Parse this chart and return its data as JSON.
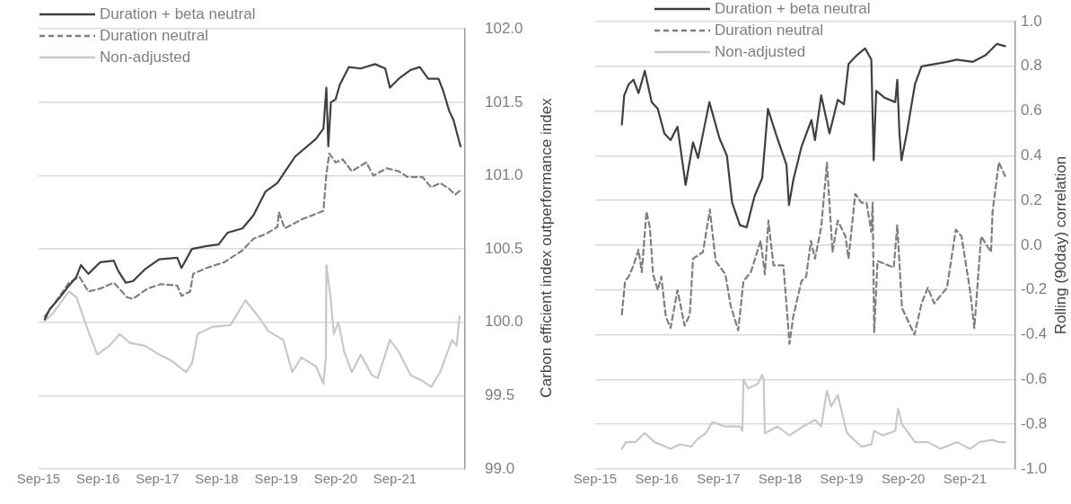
{
  "chart_data": [
    {
      "type": "line",
      "ylabel": "Carbon efficient index outperformance index",
      "grid": "y",
      "legend": "top left",
      "marker": "none",
      "xlim": [
        "2015-09-01",
        "2022-11-06"
      ],
      "xticks": [
        {
          "value": "2015-09-01",
          "label": "Sep-15"
        },
        {
          "value": "2016-09-01",
          "label": "Sep-16"
        },
        {
          "value": "2017-09-01",
          "label": "Sep-17"
        },
        {
          "value": "2018-09-01",
          "label": "Sep-18"
        },
        {
          "value": "2019-09-01",
          "label": "Sep-19"
        },
        {
          "value": "2020-09-01",
          "label": "Sep-20"
        },
        {
          "value": "2021-09-01",
          "label": "Sep-21"
        }
      ],
      "ylim": [
        99,
        102
      ],
      "yticks": [
        {
          "value": 99,
          "label": "99.0"
        },
        {
          "value": 99.5,
          "label": "99.5"
        },
        {
          "value": 100,
          "label": "100.0"
        },
        {
          "value": 100.5,
          "label": "100.5"
        },
        {
          "value": 101,
          "label": "101.0"
        },
        {
          "value": 101.5,
          "label": "101.5"
        },
        {
          "value": 102,
          "label": "102.0"
        }
      ],
      "series": [
        {
          "name": "Duration + beta neutral",
          "color": "#404040",
          "line_style": "solid",
          "x": [
            "2015-10-09",
            "2015-11-09",
            "2016-01-03",
            "2016-03-06",
            "2016-04-21",
            "2016-05-18",
            "2016-07-03",
            "2016-09-15",
            "2016-12-06",
            "2017-01-03",
            "2017-02-18",
            "2017-04-03",
            "2017-06-15",
            "2017-09-12",
            "2018-01-01",
            "2018-01-27",
            "2018-04-01",
            "2018-07-01",
            "2018-09-12",
            "2018-11-06",
            "2019-02-06",
            "2019-04-15",
            "2019-06-27",
            "2019-09-09",
            "2019-10-15",
            "2019-12-27",
            "2020-05-03",
            "2020-06-18",
            "2020-07-06",
            "2020-07-18",
            "2020-08-03",
            "2020-09-01",
            "2020-09-27",
            "2020-11-21",
            "2021-02-03",
            "2021-05-01",
            "2021-07-03",
            "2021-08-01",
            "2021-09-24",
            "2021-12-06",
            "2022-02-01",
            "2022-03-24",
            "2022-05-27",
            "2022-06-24",
            "2022-08-01",
            "2022-08-27",
            "2022-10-09"
          ],
          "values": [
            100.02,
            100.09,
            100.16,
            100.25,
            100.31,
            100.39,
            100.33,
            100.41,
            100.42,
            100.35,
            100.27,
            100.28,
            100.36,
            100.43,
            100.44,
            100.37,
            100.5,
            100.52,
            100.53,
            100.61,
            100.64,
            100.73,
            100.89,
            100.95,
            101.01,
            101.13,
            101.25,
            101.32,
            101.6,
            101.2,
            101.5,
            101.52,
            101.62,
            101.74,
            101.73,
            101.76,
            101.73,
            101.6,
            101.66,
            101.72,
            101.74,
            101.66,
            101.66,
            101.58,
            101.44,
            101.38,
            101.2
          ]
        },
        {
          "name": "Duration neutral",
          "color": "#7f7f7f",
          "line_style": "dashed",
          "x": [
            "2015-10-09",
            "2016-01-03",
            "2016-03-06",
            "2016-05-09",
            "2016-07-03",
            "2016-09-15",
            "2016-12-06",
            "2017-02-27",
            "2017-04-03",
            "2017-07-03",
            "2017-09-21",
            "2018-01-01",
            "2018-01-27",
            "2018-03-21",
            "2018-04-09",
            "2018-07-01",
            "2018-10-18",
            "2019-02-06",
            "2019-04-15",
            "2019-06-27",
            "2019-09-09",
            "2019-09-18",
            "2019-10-24",
            "2020-02-03",
            "2020-06-18",
            "2020-07-06",
            "2020-07-24",
            "2020-09-01",
            "2020-10-15",
            "2020-12-09",
            "2021-03-09",
            "2021-04-21",
            "2021-07-12",
            "2021-09-24",
            "2021-11-18",
            "2022-02-18",
            "2022-04-12",
            "2022-06-06",
            "2022-08-01",
            "2022-09-06",
            "2022-10-09"
          ],
          "values": [
            100.04,
            100.17,
            100.27,
            100.31,
            100.21,
            100.23,
            100.27,
            100.17,
            100.16,
            100.23,
            100.26,
            100.25,
            100.18,
            100.21,
            100.33,
            100.37,
            100.41,
            100.49,
            100.57,
            100.6,
            100.65,
            100.75,
            100.64,
            100.7,
            100.76,
            101.01,
            101.15,
            101.09,
            101.11,
            101.03,
            101.09,
            101.0,
            101.05,
            101.03,
            100.99,
            100.99,
            100.92,
            100.95,
            100.91,
            100.87,
            100.9
          ]
        },
        {
          "name": "Non-adjusted",
          "color": "#c8c8c8",
          "line_style": "solid",
          "x": [
            "2015-10-09",
            "2015-11-27",
            "2016-03-06",
            "2016-04-21",
            "2016-07-03",
            "2016-08-27",
            "2016-11-09",
            "2017-01-12",
            "2017-03-15",
            "2017-06-15",
            "2017-09-12",
            "2017-11-24",
            "2018-02-24",
            "2018-04-01",
            "2018-05-06",
            "2018-08-06",
            "2018-11-24",
            "2019-02-24",
            "2019-05-21",
            "2019-07-15",
            "2019-10-15",
            "2019-12-09",
            "2020-02-03",
            "2020-05-03",
            "2020-06-18",
            "2020-07-03",
            "2020-07-06",
            "2020-08-03",
            "2020-08-21",
            "2020-09-18",
            "2020-10-24",
            "2020-12-09",
            "2021-02-03",
            "2021-04-12",
            "2021-05-18",
            "2021-08-01",
            "2021-09-24",
            "2021-12-06",
            "2022-02-18",
            "2022-04-12",
            "2022-06-06",
            "2022-08-18",
            "2022-09-15",
            "2022-10-03"
          ],
          "values": [
            100.01,
            100.06,
            100.21,
            100.17,
            99.94,
            99.78,
            99.84,
            99.92,
            99.86,
            99.84,
            99.78,
            99.74,
            99.66,
            99.72,
            99.92,
            99.97,
            99.98,
            100.15,
            100.03,
            99.94,
            99.88,
            99.66,
            99.76,
            99.7,
            99.58,
            99.76,
            100.39,
            100.15,
            99.92,
            100.0,
            99.8,
            99.66,
            99.78,
            99.64,
            99.62,
            99.88,
            99.8,
            99.64,
            99.6,
            99.56,
            99.66,
            99.88,
            99.84,
            100.04
          ]
        }
      ]
    },
    {
      "type": "line",
      "ylabel": "Rolling (90day) correlation",
      "grid": "y",
      "legend": "top left",
      "marker": "none",
      "xlim": [
        "2015-09-01",
        "2022-06-27"
      ],
      "xticks": [
        {
          "value": "2015-09-01",
          "label": "Sep-15"
        },
        {
          "value": "2016-09-01",
          "label": "Sep-16"
        },
        {
          "value": "2017-09-01",
          "label": "Sep-17"
        },
        {
          "value": "2018-09-01",
          "label": "Sep-18"
        },
        {
          "value": "2019-09-01",
          "label": "Sep-19"
        },
        {
          "value": "2020-09-01",
          "label": "Sep-20"
        },
        {
          "value": "2021-09-01",
          "label": "Sep-21"
        }
      ],
      "ylim": [
        -1,
        1
      ],
      "yticks": [
        {
          "value": -1,
          "label": "-1.0"
        },
        {
          "value": -0.8,
          "label": "-0.8"
        },
        {
          "value": -0.6,
          "label": "-0.6"
        },
        {
          "value": -0.4,
          "label": "-0.4"
        },
        {
          "value": -0.2,
          "label": "-0.2"
        },
        {
          "value": 0,
          "label": "0.0"
        },
        {
          "value": 0.2,
          "label": "0.2"
        },
        {
          "value": 0.4,
          "label": "0.4"
        },
        {
          "value": 0.6,
          "label": "0.6"
        },
        {
          "value": 0.8,
          "label": "0.8"
        },
        {
          "value": 1,
          "label": "1.0"
        }
      ],
      "series": [
        {
          "name": "Duration + beta neutral",
          "color": "#404040",
          "line_style": "solid",
          "x": [
            "2016-02-06",
            "2016-02-20",
            "2016-03-18",
            "2016-04-15",
            "2016-05-15",
            "2016-06-21",
            "2016-08-01",
            "2016-09-06",
            "2016-10-15",
            "2016-11-21",
            "2017-01-01",
            "2017-02-18",
            "2017-04-03",
            "2017-05-03",
            "2017-07-09",
            "2017-09-06",
            "2017-10-21",
            "2017-11-21",
            "2018-01-06",
            "2018-02-15",
            "2018-04-03",
            "2018-05-18",
            "2018-06-21",
            "2018-08-15",
            "2018-10-09",
            "2018-10-24",
            "2018-11-18",
            "2019-01-06",
            "2019-03-06",
            "2019-03-27",
            "2019-05-03",
            "2019-06-21",
            "2019-08-09",
            "2019-09-15",
            "2019-10-12",
            "2019-12-01",
            "2020-01-18",
            "2020-02-24",
            "2020-03-09",
            "2020-03-24",
            "2020-05-12",
            "2020-07-15",
            "2020-07-27",
            "2020-08-09",
            "2020-08-21",
            "2020-09-21",
            "2020-11-09",
            "2020-12-18",
            "2021-03-03",
            "2021-05-18",
            "2021-07-15",
            "2021-10-18",
            "2022-01-03",
            "2022-03-09",
            "2022-04-27"
          ],
          "values": [
            0.54,
            0.67,
            0.72,
            0.74,
            0.68,
            0.78,
            0.64,
            0.61,
            0.5,
            0.47,
            0.53,
            0.27,
            0.46,
            0.39,
            0.64,
            0.48,
            0.4,
            0.19,
            0.09,
            0.08,
            0.22,
            0.3,
            0.61,
            0.48,
            0.36,
            0.18,
            0.29,
            0.44,
            0.56,
            0.47,
            0.67,
            0.5,
            0.65,
            0.63,
            0.81,
            0.85,
            0.88,
            0.83,
            0.38,
            0.69,
            0.66,
            0.64,
            0.74,
            0.5,
            0.38,
            0.5,
            0.72,
            0.8,
            0.81,
            0.82,
            0.83,
            0.82,
            0.85,
            0.9,
            0.89
          ]
        },
        {
          "name": "Duration neutral",
          "color": "#7f7f7f",
          "line_style": "dashed",
          "x": [
            "2016-02-06",
            "2016-02-25",
            "2016-03-18",
            "2016-04-15",
            "2016-05-15",
            "2016-06-03",
            "2016-07-01",
            "2016-07-21",
            "2016-08-09",
            "2016-09-06",
            "2016-09-27",
            "2016-10-24",
            "2016-11-21",
            "2017-01-01",
            "2017-02-12",
            "2017-03-15",
            "2017-04-03",
            "2017-06-01",
            "2017-07-12",
            "2017-08-15",
            "2017-10-12",
            "2017-11-12",
            "2017-12-27",
            "2018-01-27",
            "2018-03-12",
            "2018-05-09",
            "2018-06-03",
            "2018-06-24",
            "2018-07-24",
            "2018-09-21",
            "2018-10-27",
            "2018-11-18",
            "2019-01-06",
            "2019-02-03",
            "2019-03-03",
            "2019-03-27",
            "2019-05-03",
            "2019-06-06",
            "2019-07-09",
            "2019-08-09",
            "2019-09-24",
            "2019-10-12",
            "2019-11-21",
            "2019-12-27",
            "2020-01-27",
            "2020-02-24",
            "2020-03-03",
            "2020-03-12",
            "2020-04-01",
            "2020-07-06",
            "2020-07-27",
            "2020-08-24",
            "2020-11-06",
            "2020-12-18",
            "2021-01-24",
            "2021-03-03",
            "2021-05-18",
            "2021-07-09",
            "2021-08-12",
            "2021-10-01",
            "2021-10-27",
            "2021-12-06",
            "2022-02-03",
            "2022-02-12",
            "2022-03-21",
            "2022-04-27"
          ],
          "values": [
            -0.31,
            -0.16,
            -0.14,
            -0.09,
            -0.02,
            -0.12,
            0.15,
            0.08,
            -0.13,
            -0.2,
            -0.14,
            -0.32,
            -0.37,
            -0.2,
            -0.36,
            -0.31,
            -0.06,
            -0.03,
            0.16,
            -0.07,
            -0.13,
            -0.27,
            -0.38,
            -0.16,
            -0.12,
            0.02,
            -0.13,
            0.11,
            -0.09,
            -0.09,
            -0.44,
            -0.32,
            -0.16,
            -0.14,
            0.02,
            -0.06,
            0.08,
            0.37,
            -0.03,
            0.11,
            0.04,
            -0.06,
            0.23,
            0.19,
            0.19,
            0.06,
            0.19,
            -0.39,
            -0.07,
            -0.1,
            0.09,
            -0.28,
            -0.4,
            -0.26,
            -0.19,
            -0.26,
            -0.19,
            0.07,
            0.04,
            -0.2,
            -0.37,
            0.04,
            -0.03,
            0.15,
            0.37,
            0.31
          ]
        },
        {
          "name": "Non-adjusted",
          "color": "#c8c8c8",
          "line_style": "solid",
          "x": [
            "2016-02-06",
            "2016-03-01",
            "2016-04-25",
            "2016-06-21",
            "2016-08-18",
            "2016-11-21",
            "2017-01-18",
            "2017-03-24",
            "2017-04-24",
            "2017-06-18",
            "2017-07-27",
            "2017-10-12",
            "2018-01-06",
            "2018-01-21",
            "2018-01-27",
            "2018-02-24",
            "2018-04-21",
            "2018-05-18",
            "2018-05-27",
            "2018-06-03",
            "2018-08-15",
            "2018-10-27",
            "2019-01-15",
            "2019-03-03",
            "2019-03-27",
            "2019-05-03",
            "2019-06-06",
            "2019-07-01",
            "2019-08-09",
            "2019-10-03",
            "2019-12-27",
            "2020-02-24",
            "2020-03-12",
            "2020-05-01",
            "2020-07-15",
            "2020-08-01",
            "2020-08-24",
            "2020-11-09",
            "2021-01-24",
            "2021-04-09",
            "2021-07-15",
            "2021-10-01",
            "2021-11-27",
            "2022-02-12",
            "2022-03-21",
            "2022-04-27"
          ],
          "values": [
            -0.91,
            -0.88,
            -0.88,
            -0.84,
            -0.88,
            -0.91,
            -0.89,
            -0.9,
            -0.87,
            -0.84,
            -0.79,
            -0.81,
            -0.81,
            -0.83,
            -0.6,
            -0.64,
            -0.62,
            -0.58,
            -0.6,
            -0.84,
            -0.81,
            -0.85,
            -0.81,
            -0.79,
            -0.78,
            -0.81,
            -0.65,
            -0.72,
            -0.67,
            -0.84,
            -0.9,
            -0.89,
            -0.83,
            -0.85,
            -0.83,
            -0.73,
            -0.8,
            -0.88,
            -0.88,
            -0.91,
            -0.88,
            -0.91,
            -0.88,
            -0.87,
            -0.88,
            -0.88
          ]
        }
      ]
    }
  ]
}
